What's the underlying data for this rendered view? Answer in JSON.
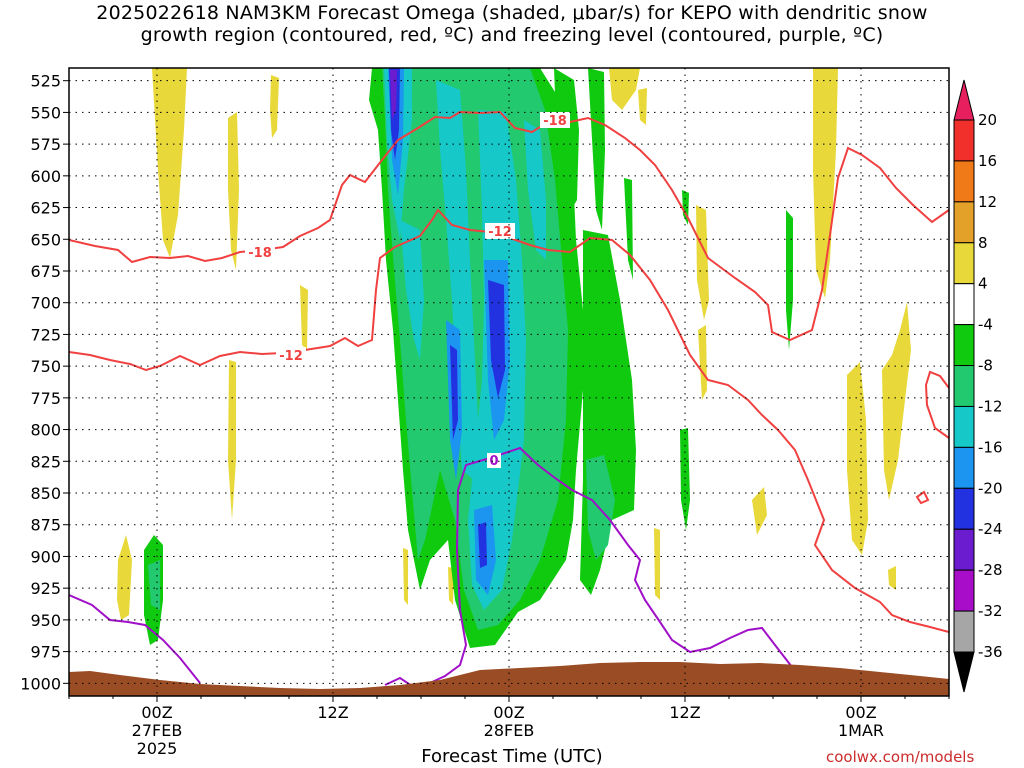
{
  "chart_data": {
    "type": "heatmap",
    "title_lines": [
      "2025022618 NAM3KM Forecast Omega (shaded, μbar/s) for KEPO with dendritic snow",
      "growth region (contoured, red, ºC) and freezing level (contoured, purple, ºC)"
    ],
    "xlabel": "Forecast Time (UTC)",
    "credit": "coolwx.com/models",
    "x_ticks": [
      {
        "label": [
          "00Z",
          "27FEB",
          "2025"
        ],
        "hours": 6
      },
      {
        "label": [
          "12Z"
        ],
        "hours": 18
      },
      {
        "label": [
          "00Z",
          "28FEB"
        ],
        "hours": 30
      },
      {
        "label": [
          "12Z"
        ],
        "hours": 42
      },
      {
        "label": [
          "00Z",
          "1MAR"
        ],
        "hours": 54
      }
    ],
    "x_range_hours": [
      0,
      60
    ],
    "y_ticks": [
      525,
      550,
      575,
      600,
      625,
      650,
      675,
      700,
      725,
      750,
      775,
      800,
      825,
      850,
      875,
      900,
      925,
      950,
      975,
      1000
    ],
    "y_range": [
      1010,
      515
    ],
    "colorbar": {
      "levels": [
        "20",
        "16",
        "12",
        "8",
        "4",
        "-4",
        "-8",
        "-12",
        "-16",
        "-20",
        "-24",
        "-28",
        "-32",
        "-36"
      ],
      "colors": [
        "#e81f5e",
        "#f2302b",
        "#f07a18",
        "#e3a12a",
        "#e8d83a",
        "#ffffff",
        "#0fca0f",
        "#23c96e",
        "#16c8c8",
        "#1b95f0",
        "#2332e0",
        "#6b1ccf",
        "#a80dc9",
        "#a6a6a6",
        "#000000"
      ]
    },
    "contour_labels": {
      "red": [
        "-18",
        "-18",
        "-12",
        "-12"
      ],
      "purple": [
        "0"
      ]
    },
    "colors": {
      "dendritic": "#f04040",
      "freezing": "#a010c8",
      "terrain": "#9a4d24"
    }
  }
}
